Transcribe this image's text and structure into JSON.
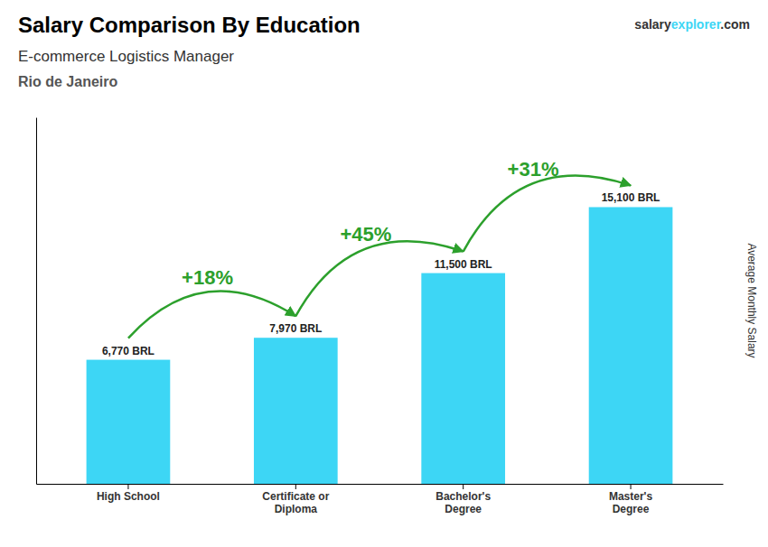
{
  "chart_data": {
    "type": "bar",
    "title": "Salary Comparison By Education",
    "subtitle": [
      "E-commerce Logistics Manager",
      "Rio de Janeiro"
    ],
    "source": [
      "salary",
      "explorer",
      ".com"
    ],
    "y_label": "Average Monthly Salary",
    "categories": [
      "High School",
      "Certificate or\nDiploma",
      "Bachelor's\nDegree",
      "Master's\nDegree"
    ],
    "values": [
      6770,
      7970,
      11500,
      15100
    ],
    "value_labels": [
      "6,770 BRL",
      "7,970 BRL",
      "11,500 BRL",
      "15,100 BRL"
    ],
    "data_labels": true,
    "annotations": [
      "+18%",
      "+45%",
      "+31%"
    ],
    "color": "#3DD6F5",
    "ylim": [
      0,
      20000
    ],
    "tick_labels": "x"
  }
}
